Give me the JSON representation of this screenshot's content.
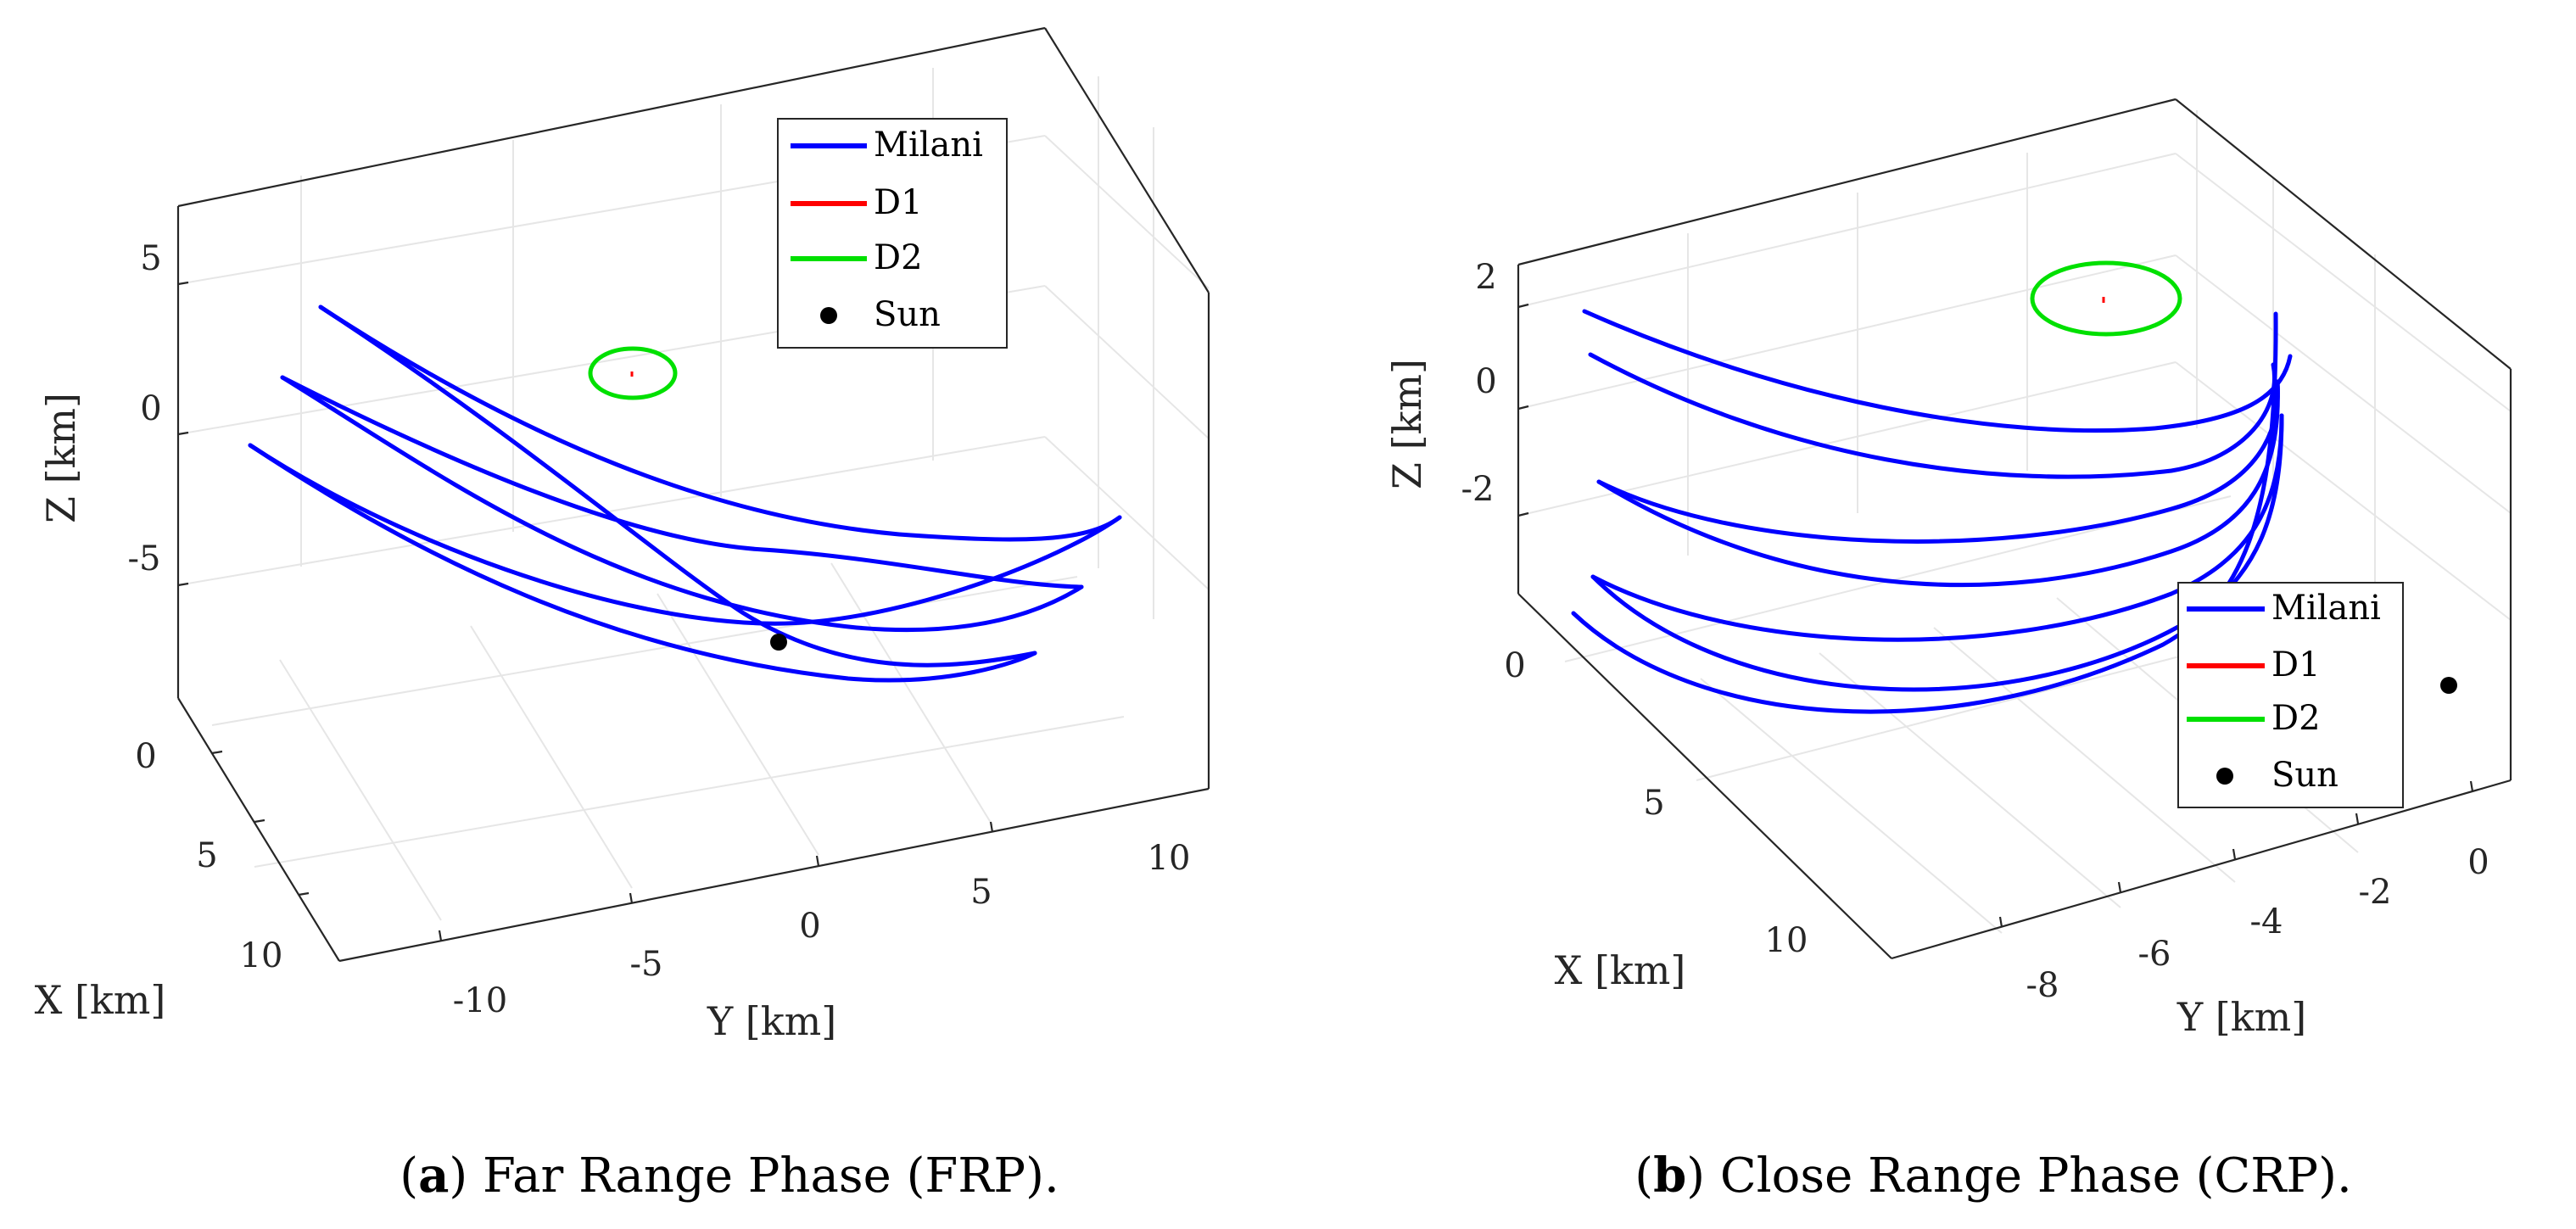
{
  "chart_data": [
    {
      "type": "line3d",
      "panel": "a",
      "caption_letter": "a",
      "caption_text": " Far Range Phase (FRP).",
      "xlabel": "X [km]",
      "ylabel": "Y [km]",
      "zlabel": "Z [km]",
      "x_ticks": [
        "0",
        "5",
        "10"
      ],
      "y_ticks": [
        "-10",
        "-5",
        "0",
        "5",
        "10"
      ],
      "z_ticks": [
        "5",
        "0",
        "-5"
      ],
      "xlim": [
        0,
        12
      ],
      "ylim": [
        -13,
        13
      ],
      "zlim": [
        -9,
        8
      ],
      "grid": true,
      "legend": {
        "position": "top-right",
        "entries": [
          {
            "label": "Milani",
            "color": "#0000ff",
            "marker": "line"
          },
          {
            "label": "D1",
            "color": "#ff0000",
            "marker": "line"
          },
          {
            "label": "D2",
            "color": "#00e000",
            "marker": "line"
          },
          {
            "label": "Sun",
            "color": "#000000",
            "marker": "dot"
          }
        ]
      },
      "series": [
        {
          "name": "Milani",
          "description": "trajectory arcs (visual traces)",
          "color": "#0000ff"
        },
        {
          "name": "D1",
          "color": "#ff0000"
        },
        {
          "name": "D2",
          "color": "#00e000"
        },
        {
          "name": "Sun",
          "color": "#000000"
        }
      ]
    },
    {
      "type": "line3d",
      "panel": "b",
      "caption_letter": "b",
      "caption_text": " Close Range Phase (CRP).",
      "xlabel": "X [km]",
      "ylabel": "Y [km]",
      "zlabel": "Z [km]",
      "x_ticks": [
        "0",
        "5",
        "10"
      ],
      "y_ticks": [
        "-8",
        "-6",
        "-4",
        "-2",
        "0"
      ],
      "z_ticks": [
        "2",
        "0",
        "-2"
      ],
      "xlim": [
        -1,
        12
      ],
      "ylim": [
        -9,
        0.5
      ],
      "zlim": [
        -4,
        2.5
      ],
      "grid": true,
      "legend": {
        "position": "bottom-right",
        "entries": [
          {
            "label": "Milani",
            "color": "#0000ff",
            "marker": "line"
          },
          {
            "label": "D1",
            "color": "#ff0000",
            "marker": "line"
          },
          {
            "label": "D2",
            "color": "#00e000",
            "marker": "line"
          },
          {
            "label": "Sun",
            "color": "#000000",
            "marker": "dot"
          }
        ]
      },
      "series": [
        {
          "name": "Milani",
          "description": "trajectory arcs (visual traces)",
          "color": "#0000ff"
        },
        {
          "name": "D1",
          "color": "#ff0000"
        },
        {
          "name": "D2",
          "color": "#00e000"
        },
        {
          "name": "Sun",
          "color": "#000000"
        }
      ]
    }
  ]
}
